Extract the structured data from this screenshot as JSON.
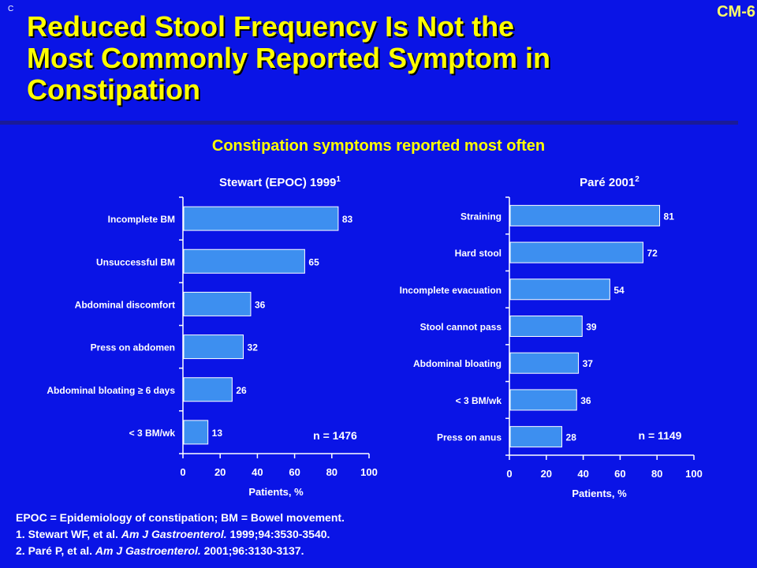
{
  "header": {
    "corner_mark": "C",
    "slide_id": "CM-6",
    "title_lines": [
      "Reduced Stool Frequency Is Not the",
      "Most Commonly Reported Symptom in",
      "Constipation"
    ],
    "subtitle": "Constipation symptoms reported most often"
  },
  "colors": {
    "background": "#0a14e6",
    "title": "#ffff00",
    "bar": "#3d8ff0",
    "text": "#ffffff"
  },
  "chart_data": [
    {
      "type": "bar",
      "orientation": "horizontal",
      "title": "Stewart (EPOC) 1999",
      "title_superscript": "1",
      "categories": [
        "Incomplete BM",
        "Unsuccessful BM",
        "Abdominal discomfort",
        "Press on abdomen",
        "Abdominal bloating ≥ 6 days",
        "< 3 BM/wk"
      ],
      "values": [
        83,
        65,
        36,
        32,
        26,
        13
      ],
      "xlabel": "Patients, %",
      "xlim": [
        0,
        100
      ],
      "xticks": [
        "0",
        "20",
        "40",
        "60",
        "80",
        "100"
      ],
      "annotation": "n = 1476",
      "grid": false
    },
    {
      "type": "bar",
      "orientation": "horizontal",
      "title": "Paré 2001",
      "title_superscript": "2",
      "categories": [
        "Straining",
        "Hard stool",
        "Incomplete evacuation",
        "Stool cannot pass",
        "Abdominal bloating",
        "< 3 BM/wk",
        "Press on anus"
      ],
      "values": [
        81,
        72,
        54,
        39,
        37,
        36,
        28
      ],
      "xlabel": "Patients, %",
      "xlim": [
        0,
        100
      ],
      "xticks": [
        "0",
        "20",
        "40",
        "60",
        "80",
        "100"
      ],
      "annotation": "n = 1149",
      "grid": false
    }
  ],
  "footnotes": {
    "line1": "EPOC = Epidemiology of constipation; BM = Bowel movement.",
    "line2_pre": "1. Stewart WF, et al. ",
    "line2_journal": "Am J Gastroenterol.",
    "line2_post": " 1999;94:3530-3540.",
    "line3_pre": "2. Paré P, et al. ",
    "line3_journal": "Am J Gastroenterol.",
    "line3_post": " 2001;96:3130-3137."
  }
}
